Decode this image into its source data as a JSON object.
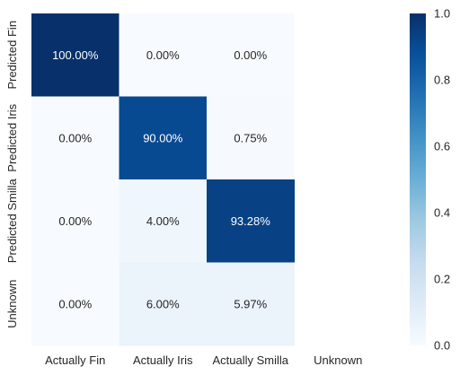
{
  "chart_data": {
    "type": "heatmap",
    "row_labels": [
      "Predicted Fin",
      "Predicted Iris",
      "Predicted Smilla",
      "Unknown"
    ],
    "column_labels": [
      "Actually Fin",
      "Actually Iris",
      "Actually Smilla",
      "Unknown"
    ],
    "values": [
      [
        1.0,
        0.0,
        0.0,
        null
      ],
      [
        0.0,
        0.9,
        0.0075,
        null
      ],
      [
        0.0,
        0.04,
        0.9328,
        null
      ],
      [
        0.0,
        0.06,
        0.0597,
        null
      ]
    ],
    "cell_labels": [
      [
        "100.00%",
        "0.00%",
        "0.00%",
        ""
      ],
      [
        "0.00%",
        "90.00%",
        "0.75%",
        ""
      ],
      [
        "0.00%",
        "4.00%",
        "93.28%",
        ""
      ],
      [
        "0.00%",
        "6.00%",
        "5.97%",
        ""
      ]
    ],
    "colormap": "Blues",
    "colorbar": {
      "range": [
        0.0,
        1.0
      ],
      "ticks": [
        "0.0",
        "0.2",
        "0.4",
        "0.6",
        "0.8",
        "1.0"
      ]
    }
  }
}
